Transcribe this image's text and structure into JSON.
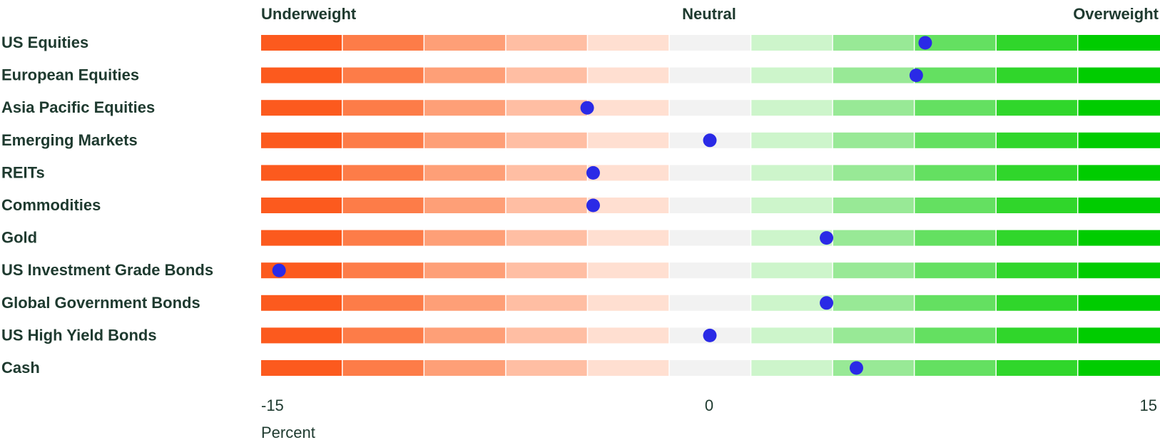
{
  "chart_data": {
    "type": "scatter",
    "headers": {
      "left": "Underweight",
      "center": "Neutral",
      "right": "Overweight"
    },
    "categories": [
      "US Equities",
      "European Equities",
      "Asia Pacific Equities",
      "Emerging Markets",
      "REITs",
      "Commodities",
      "Gold",
      "US Investment Grade Bonds",
      "Global Government Bonds",
      "US High Yield Bonds",
      "Cash"
    ],
    "values": [
      7.2,
      6.9,
      -4.1,
      0.0,
      -3.9,
      -3.9,
      3.9,
      -14.4,
      3.9,
      0.0,
      4.9
    ],
    "xlim": [
      -15,
      15
    ],
    "xticks": [
      "-15",
      "0",
      "15"
    ],
    "xlabel": "Percent",
    "band_colors": [
      "#fc5a1e",
      "#fd7c48",
      "#fe9f77",
      "#ffbea3",
      "#ffdfd1",
      "#f2f2f2",
      "#cdf5cb",
      "#98e996",
      "#64e061",
      "#30d62b",
      "#00cc00"
    ],
    "marker_color": "#2a2ae6"
  }
}
